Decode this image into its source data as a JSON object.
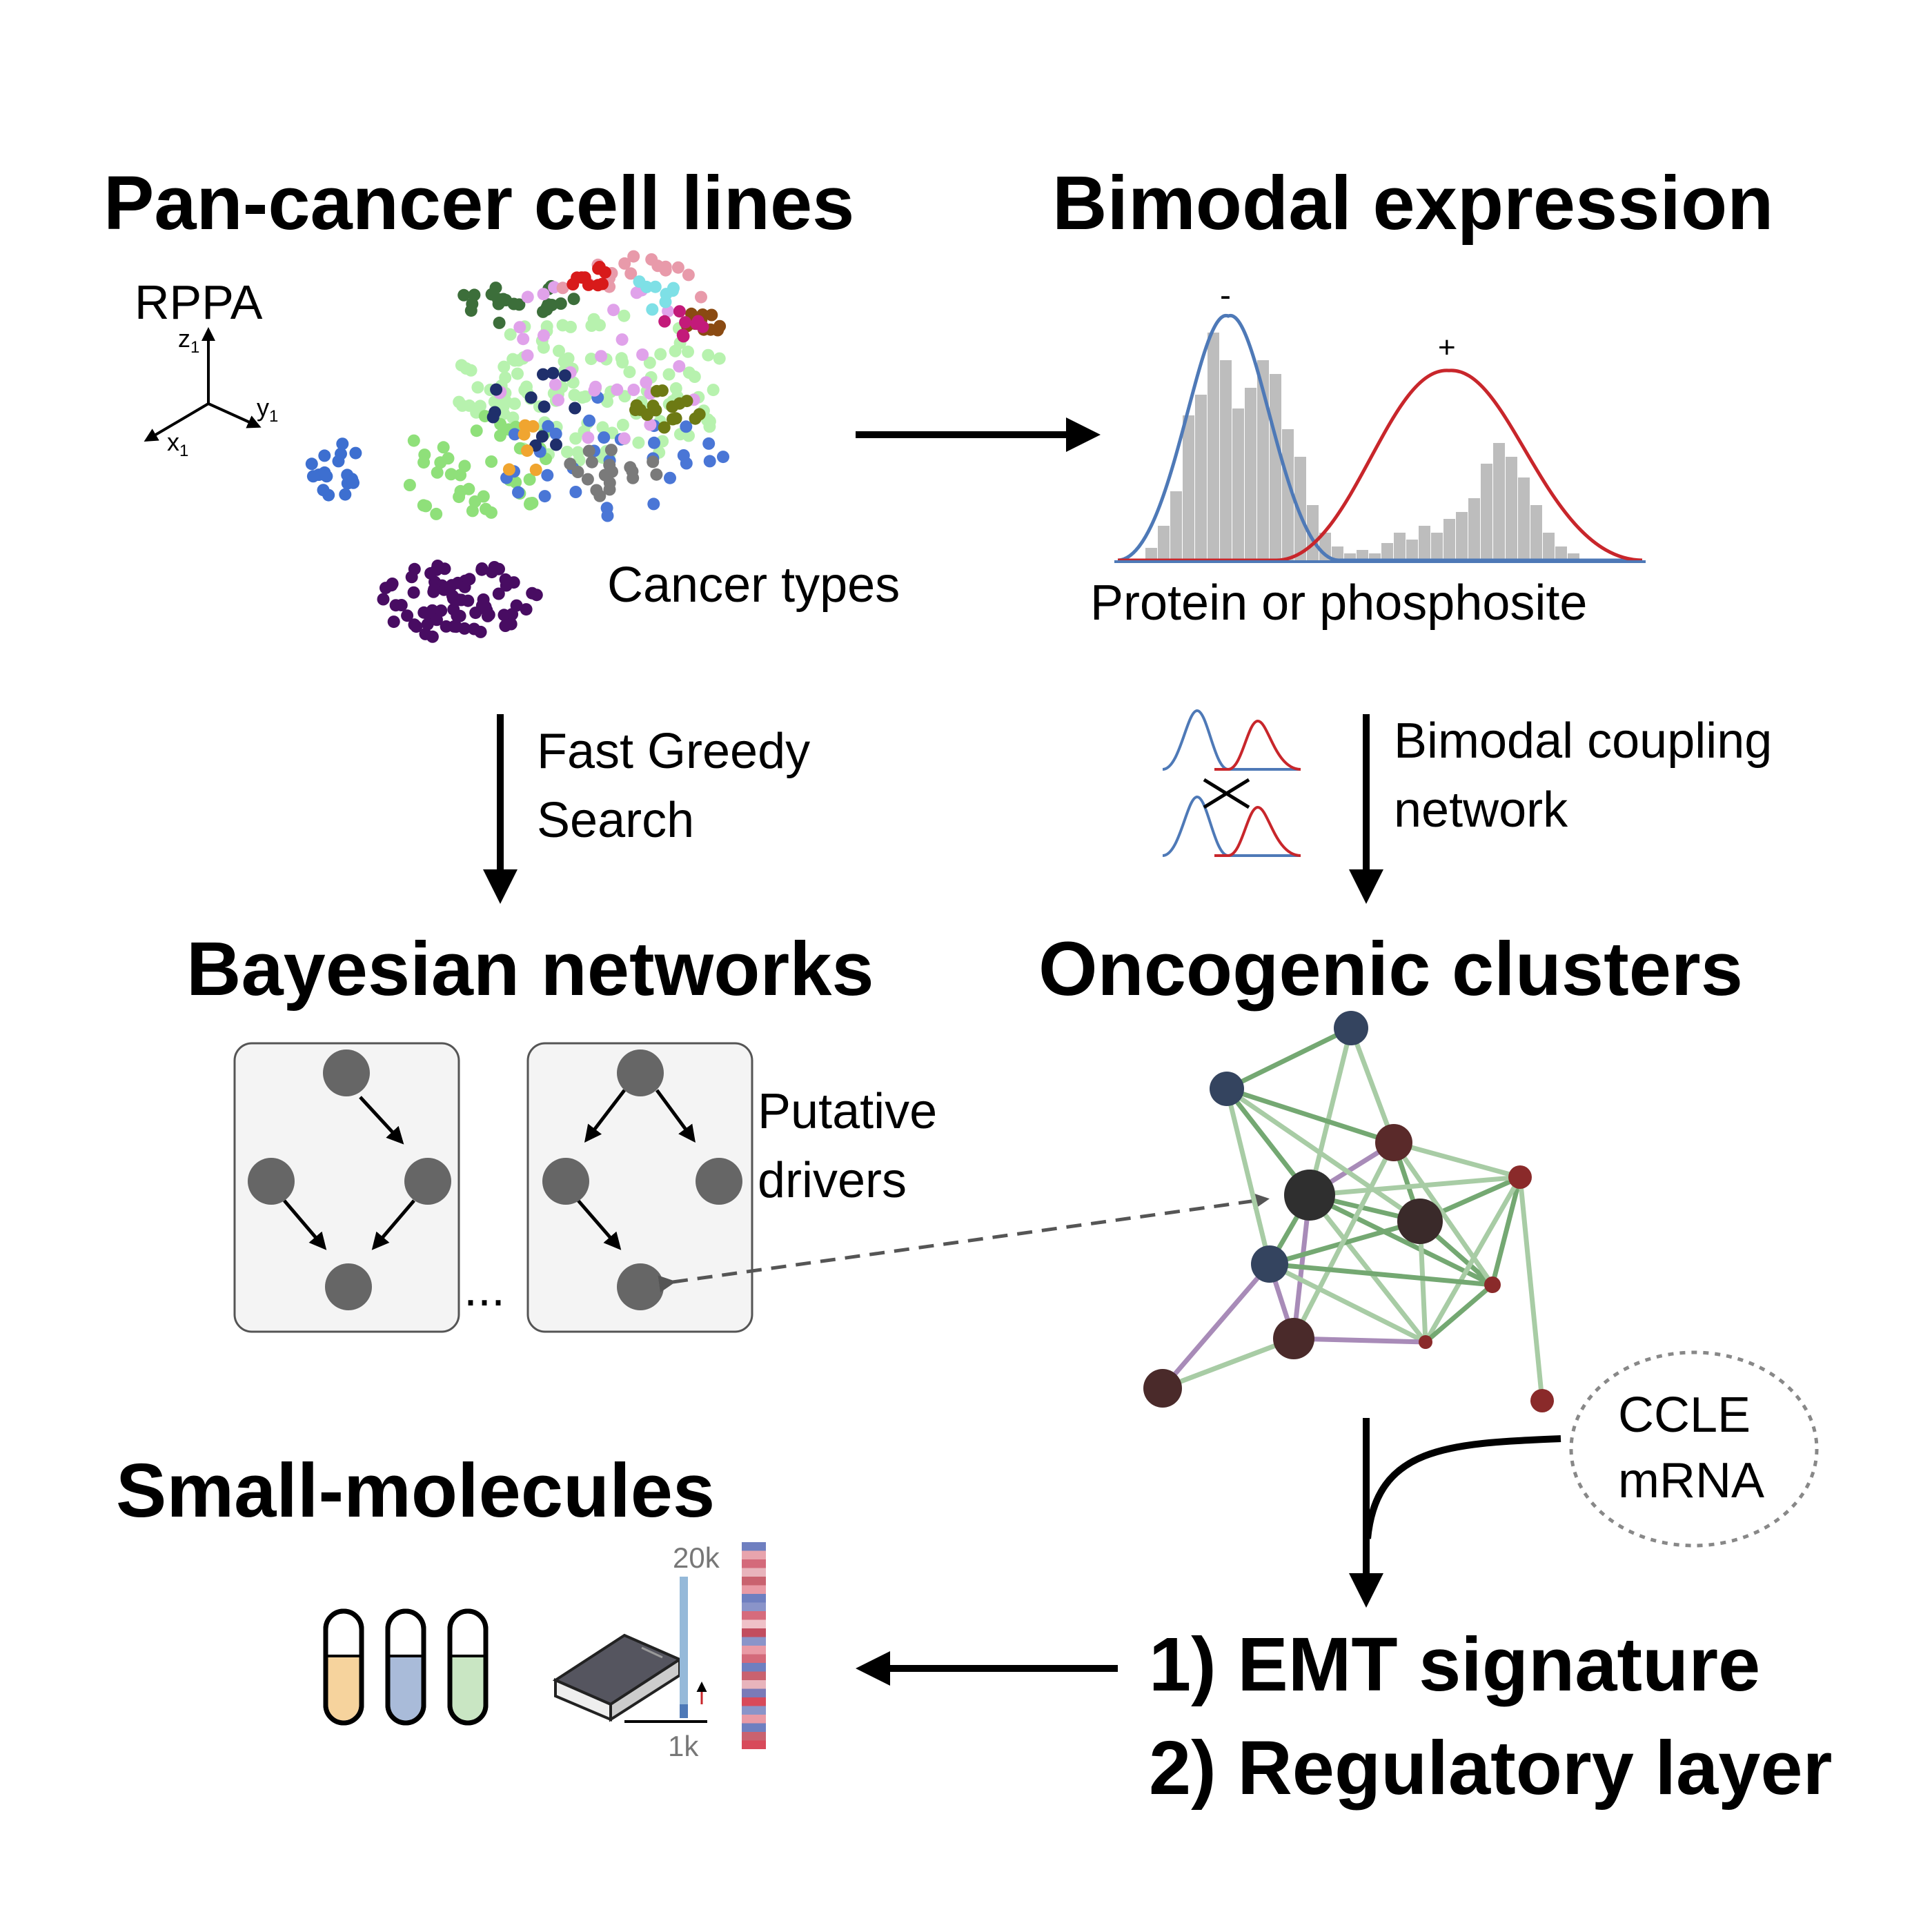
{
  "titles": {
    "pan_cancer": "Pan-cancer cell lines",
    "bimodal": "Bimodal expression",
    "bayesian": "Bayesian networks",
    "oncogenic": "Oncogenic clusters",
    "small_molecules": "Small-molecules",
    "emt": "1) EMT signature",
    "regulatory": "2) Regulatory layer"
  },
  "labels": {
    "rppa": "RPPA",
    "axis_z": "z",
    "axis_y": "y",
    "axis_x": "x",
    "axis_sub": "1",
    "cancer_types": "Cancer types",
    "protein": "Protein or phosphosite",
    "minus": "-",
    "plus": "+",
    "fast_greedy_1": "Fast Greedy",
    "fast_greedy_2": "Search",
    "coupling_1": "Bimodal coupling",
    "coupling_2": "network",
    "putative_1": "Putative",
    "putative_2": "drivers",
    "ellipsis": "...",
    "ccle_1": "CCLE",
    "ccle_2": "mRNA",
    "scale_top": "20k",
    "scale_bottom": "1k"
  },
  "colors": {
    "blue_curve": "#4e79b7",
    "red_curve": "#c8262b",
    "node_gray": "#666666",
    "edge_green": "#8db88c",
    "edge_purple": "#a88bb8"
  }
}
